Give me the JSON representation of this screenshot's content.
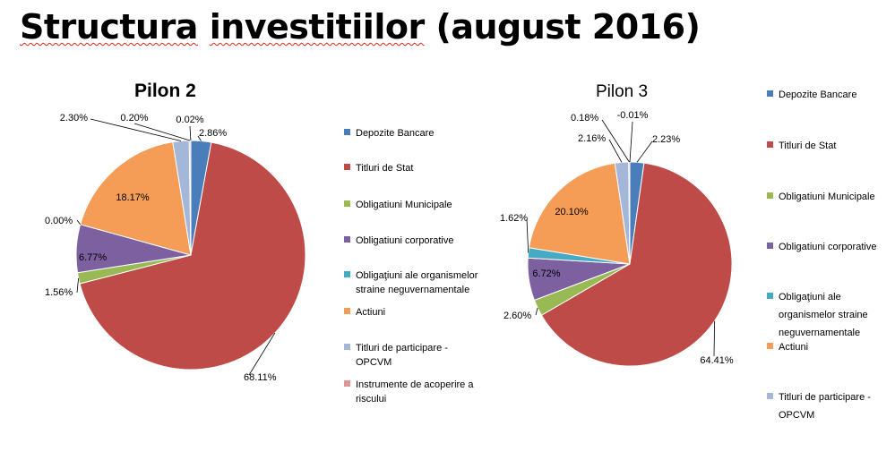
{
  "page": {
    "title_part1": "Structura",
    "title_part2": "investitiilor",
    "title_part3": "(august 2016)"
  },
  "chart_data": [
    {
      "type": "pie",
      "title": "Pilon 2",
      "slices": [
        {
          "label": "Depozite Bancare",
          "value": 2.86,
          "text": "2.86%",
          "color": "#4a7ebb"
        },
        {
          "label": "Titluri de Stat",
          "value": 68.11,
          "text": "68.11%",
          "color": "#be4b48"
        },
        {
          "label": "Obligatiuni Municipale",
          "value": 1.56,
          "text": "1.56%",
          "color": "#98b954"
        },
        {
          "label": "Obligatiuni corporative",
          "value": 6.77,
          "text": "6.77%",
          "color": "#7d60a0"
        },
        {
          "label": "Obligaţiuni ale organismelor straine neguvernamentale",
          "value": 0.0,
          "text": "0.00%",
          "color": "#46aac5"
        },
        {
          "label": "Actiuni",
          "value": 18.17,
          "text": "18.17%",
          "color": "#f59d56"
        },
        {
          "label": "Titluri de participare - OPCVM",
          "value": 2.3,
          "text": "2.30%",
          "color": "#a5b7d8"
        },
        {
          "label": "Instrumente de acoperire a riscului",
          "value": 0.2,
          "text": "0.20%",
          "color": "#d99694"
        },
        {
          "label": "",
          "value": 0.02,
          "text": "0.02%",
          "color": "#c3d69b"
        }
      ],
      "legend": [
        {
          "lines": [
            "Depozite Bancare"
          ],
          "color": "#4a7ebb"
        },
        {
          "lines": [
            "Titluri de Stat"
          ],
          "color": "#be4b48"
        },
        {
          "lines": [
            "Obligatiuni Municipale"
          ],
          "color": "#98b954"
        },
        {
          "lines": [
            "Obligatiuni corporative"
          ],
          "color": "#7d60a0"
        },
        {
          "lines": [
            "Obligaţiuni ale organismelor",
            "straine neguvernamentale"
          ],
          "color": "#46aac5"
        },
        {
          "lines": [
            "Actiuni"
          ],
          "color": "#f59d56"
        },
        {
          "lines": [
            "Titluri de participare -",
            "OPCVM"
          ],
          "color": "#a5b7d8"
        },
        {
          "lines": [
            "Instrumente de acoperire a",
            "riscului"
          ],
          "color": "#d99694"
        }
      ]
    },
    {
      "type": "pie",
      "title": "Pilon 3",
      "slices": [
        {
          "label": "Depozite Bancare",
          "value": 2.23,
          "text": "2.23%",
          "color": "#4a7ebb"
        },
        {
          "label": "Titluri de Stat",
          "value": 64.41,
          "text": "64.41%",
          "color": "#be4b48"
        },
        {
          "label": "Obligatiuni Municipale",
          "value": 2.6,
          "text": "2.60%",
          "color": "#98b954"
        },
        {
          "label": "Obligatiuni corporative",
          "value": 6.72,
          "text": "6.72%",
          "color": "#7d60a0"
        },
        {
          "label": "Obligaţiuni ale organismelor straine neguvernamentale",
          "value": 1.62,
          "text": "1.62%",
          "color": "#46aac5"
        },
        {
          "label": "Actiuni",
          "value": 20.1,
          "text": "20.10%",
          "color": "#f59d56"
        },
        {
          "label": "Titluri de participare - OPCVM",
          "value": 2.16,
          "text": "2.16%",
          "color": "#a5b7d8"
        },
        {
          "label": "",
          "value": 0.18,
          "text": "0.18%",
          "color": "#d99694"
        },
        {
          "label": "",
          "value": -0.01,
          "text": "-0.01%",
          "color": "#c3d69b"
        }
      ],
      "legend": [
        {
          "lines": [
            "Depozite Bancare"
          ],
          "color": "#4a7ebb"
        },
        {
          "lines": [
            "Titluri de Stat"
          ],
          "color": "#be4b48"
        },
        {
          "lines": [
            "Obligatiuni Municipale"
          ],
          "color": "#98b954"
        },
        {
          "lines": [
            "Obligatiuni corporative"
          ],
          "color": "#7d60a0"
        },
        {
          "lines": [
            "Obligaţiuni ale",
            "organismelor straine",
            "neguvernamentale"
          ],
          "color": "#46aac5"
        },
        {
          "lines": [
            "Actiuni"
          ],
          "color": "#f59d56"
        },
        {
          "lines": [
            "Titluri de participare -",
            "OPCVM"
          ],
          "color": "#a5b7d8"
        }
      ]
    }
  ]
}
